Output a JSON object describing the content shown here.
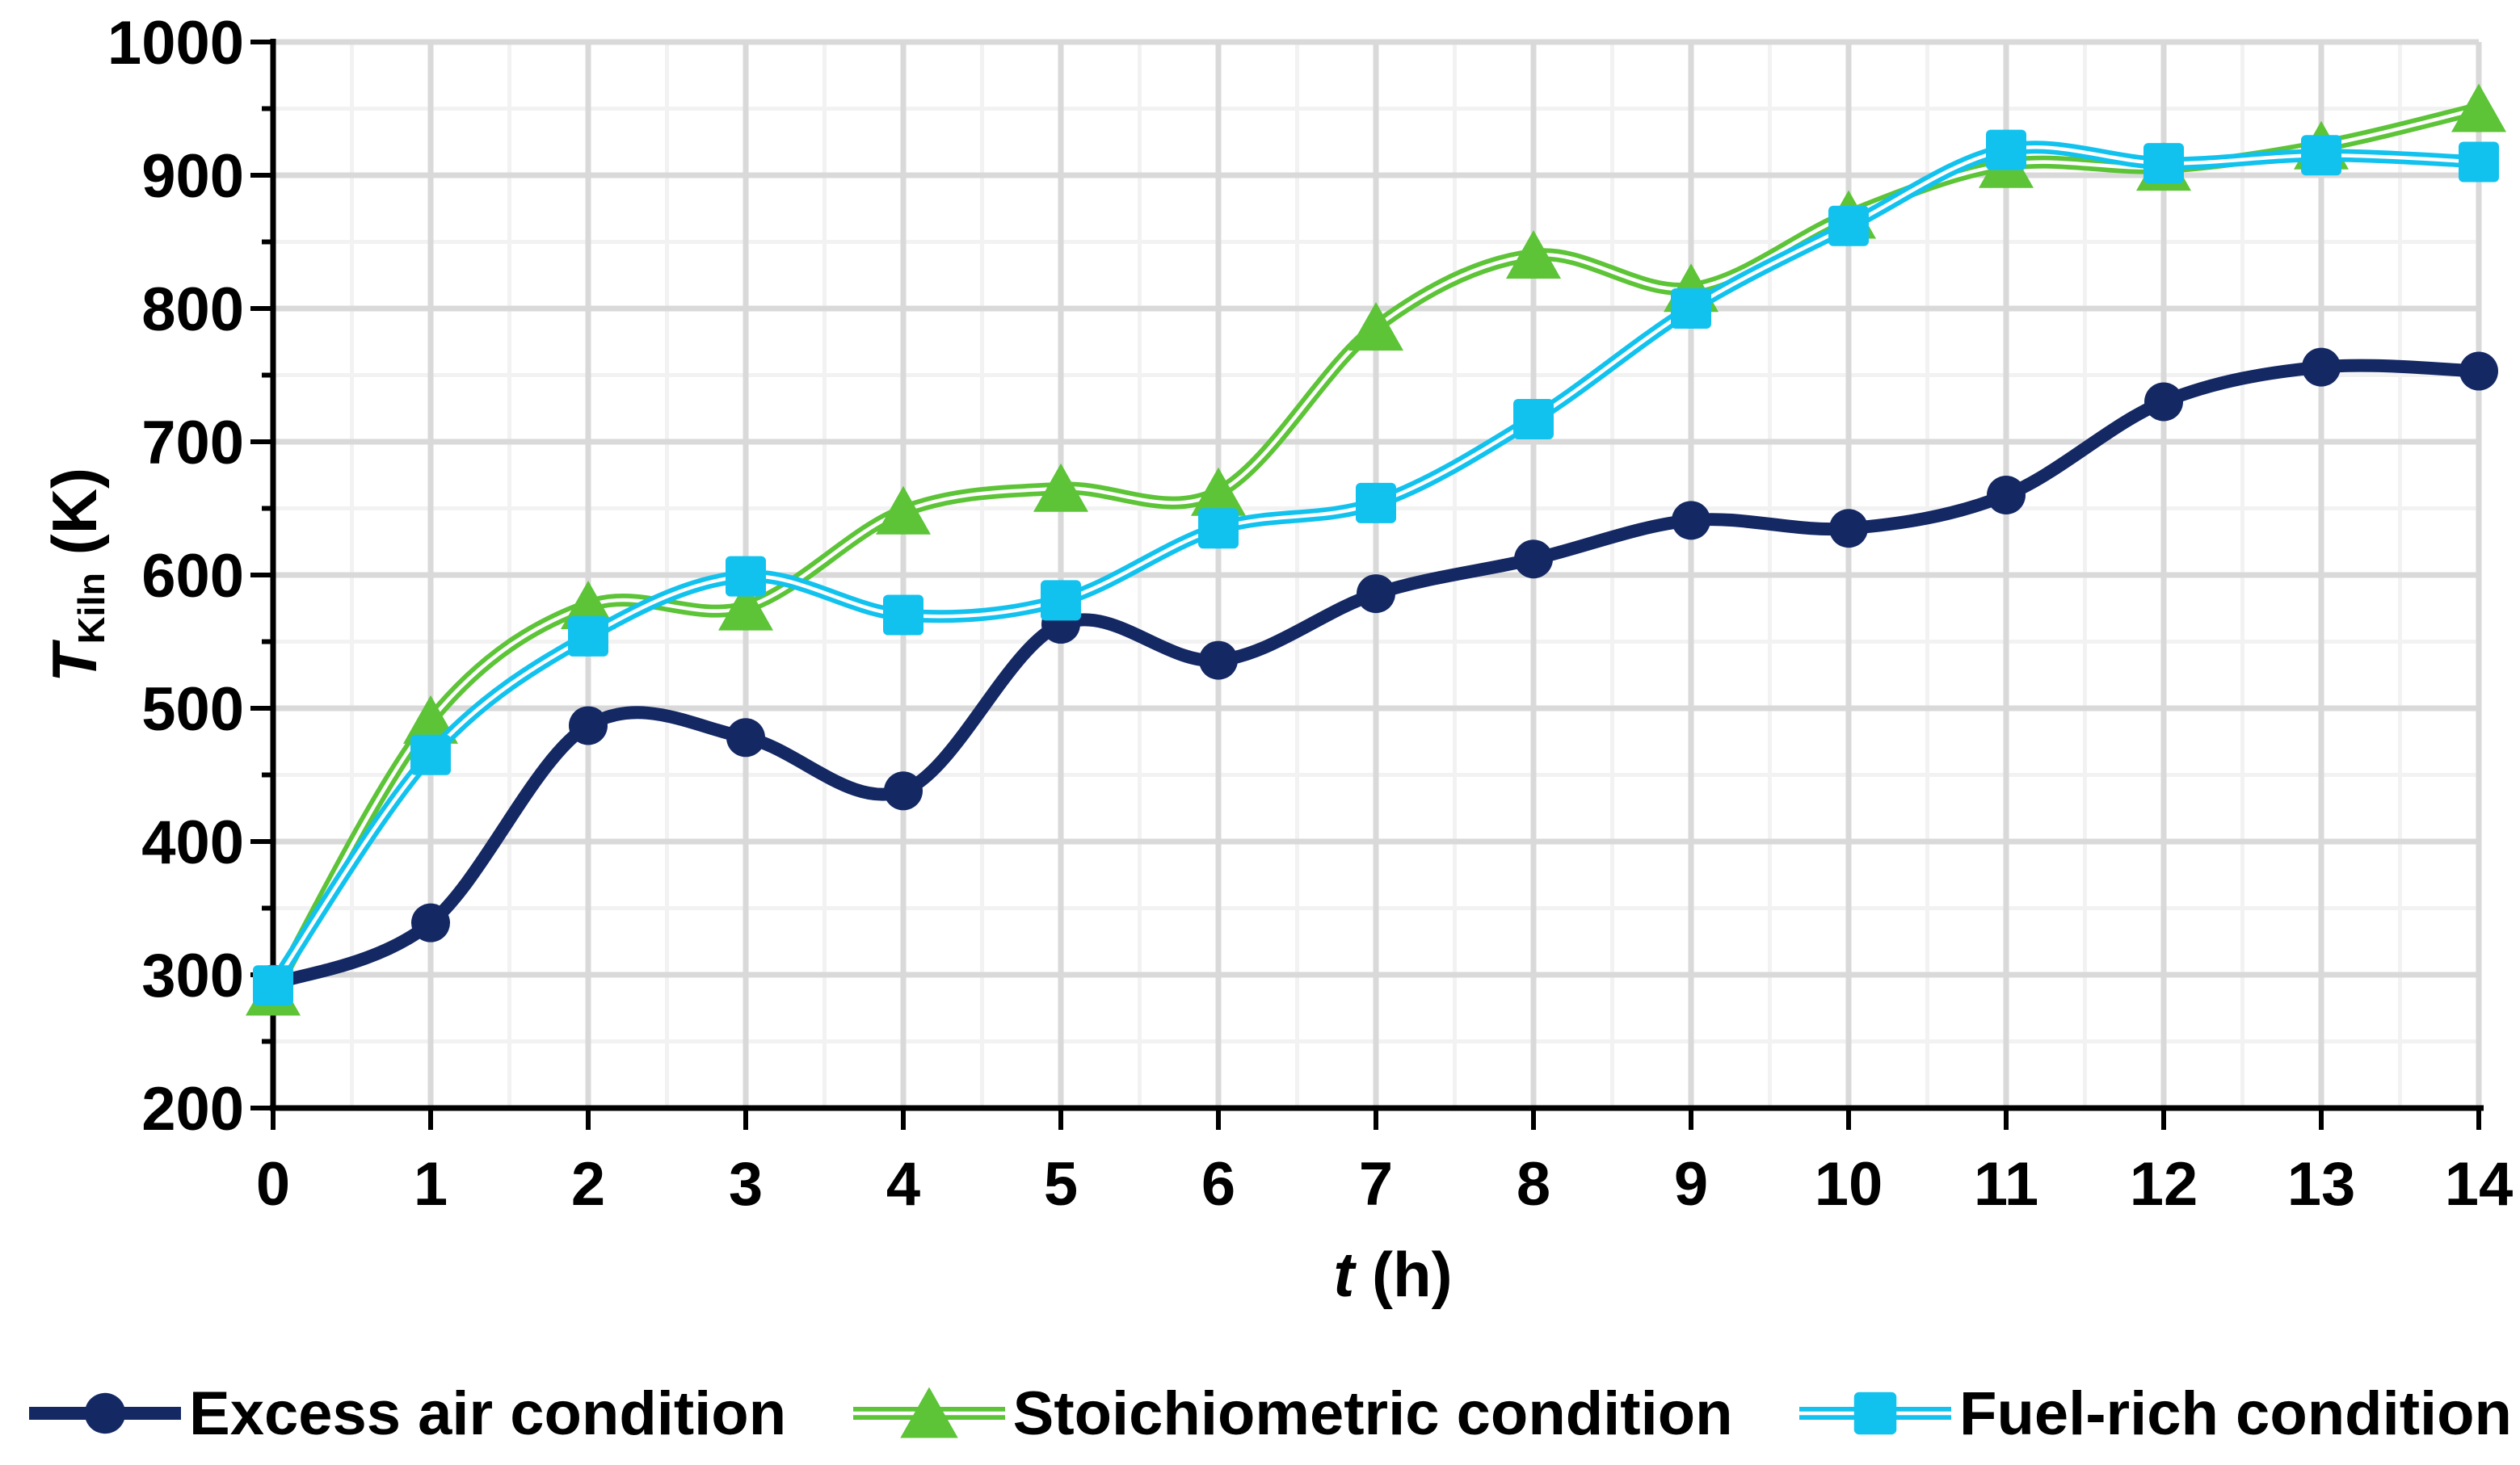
{
  "chart_data": {
    "type": "line",
    "title": "",
    "x": [
      0,
      1,
      2,
      3,
      4,
      5,
      6,
      7,
      8,
      9,
      10,
      11,
      12,
      13,
      14
    ],
    "series": [
      {
        "name": "Excess air condition",
        "marker": "circle",
        "color": "#142864",
        "white_core": false,
        "values": [
          293,
          339,
          487,
          478,
          438,
          563,
          536,
          586,
          612,
          641,
          635,
          660,
          730,
          756,
          753
        ]
      },
      {
        "name": "Stoichiometric condition",
        "marker": "triangle",
        "color": "#5cc436",
        "white_core": true,
        "values": [
          287,
          491,
          577,
          576,
          648,
          665,
          662,
          786,
          840,
          815,
          870,
          908,
          906,
          922,
          950
        ]
      },
      {
        "name": "Fuel-rich condition",
        "marker": "square",
        "color": "#12c2ee",
        "white_core": true,
        "values": [
          292,
          465,
          554,
          599,
          570,
          581,
          635,
          654,
          717,
          800,
          862,
          919,
          909,
          915,
          910
        ]
      }
    ],
    "xlabel_symbol": "t",
    "xlabel_unit": "(h)",
    "ylabel_symbol": "T",
    "ylabel_sub": "Kiln",
    "ylabel_unit": "(K)",
    "xlim": [
      0,
      14
    ],
    "ylim": [
      200,
      1000
    ],
    "x_major_step": 1,
    "x_minor_step": 0.5,
    "y_major_step": 100,
    "y_minor_step": 50,
    "x_tick_labels": [
      "0",
      "1",
      "2",
      "3",
      "4",
      "5",
      "6",
      "7",
      "8",
      "9",
      "10",
      "11",
      "12",
      "13",
      "14"
    ],
    "y_tick_labels": [
      "200",
      "300",
      "400",
      "500",
      "600",
      "700",
      "800",
      "900",
      "1000"
    ],
    "grid": {
      "major_color": "#d9d9d9",
      "minor_color": "#f2f2f2",
      "on": true
    },
    "axis_color": "#000000",
    "background": "#ffffff",
    "legend_position": "bottom",
    "smooth_lines": true
  }
}
